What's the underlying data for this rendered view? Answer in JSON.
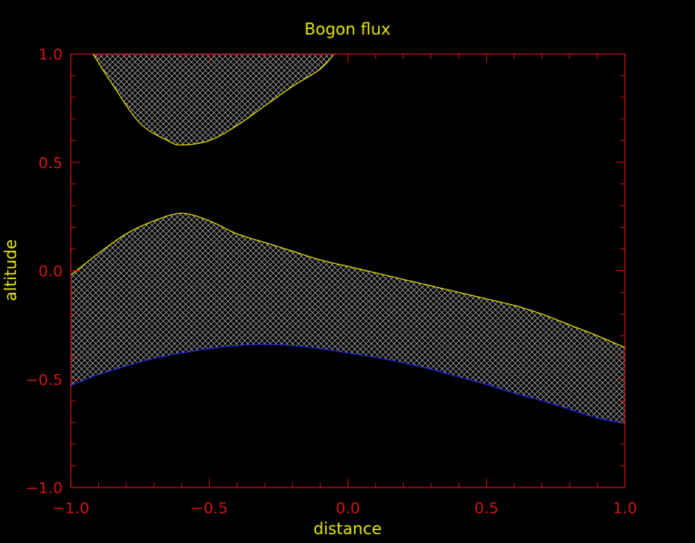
{
  "chart_data": {
    "type": "area",
    "title": "Bogon flux",
    "xlabel": "distance",
    "ylabel": "altitude",
    "xlim": [
      -1.0,
      1.0
    ],
    "ylim": [
      -1.0,
      1.0
    ],
    "x_ticks": [
      "−1.0",
      "−0.5",
      "0.0",
      "0.5",
      "1.0"
    ],
    "y_ticks": [
      "−1.0",
      "−0.5",
      "0.0",
      "0.5",
      "1.0"
    ],
    "grid": false,
    "fill_pattern": "crosshatch",
    "colors": {
      "background": "#000000",
      "axes": "#d01414",
      "text": "#e6e600",
      "upper_curve": "#e6e600",
      "lower_curve": "#2020e0",
      "hatch": "#bdbdbd"
    },
    "regions": [
      {
        "upper": [
          [
            -0.92,
            1.0
          ],
          [
            -0.6,
            1.0
          ],
          [
            -0.3,
            1.0
          ],
          [
            -0.05,
            1.0
          ]
        ],
        "lower": [
          [
            -0.92,
            1.0
          ],
          [
            -0.85,
            0.86
          ],
          [
            -0.75,
            0.68
          ],
          [
            -0.65,
            0.6
          ],
          [
            -0.6,
            0.58
          ],
          [
            -0.5,
            0.6
          ],
          [
            -0.4,
            0.67
          ],
          [
            -0.3,
            0.76
          ],
          [
            -0.2,
            0.85
          ],
          [
            -0.1,
            0.93
          ],
          [
            -0.05,
            1.0
          ]
        ]
      },
      {
        "upper": [
          [
            -1.0,
            -0.02
          ],
          [
            -0.9,
            0.08
          ],
          [
            -0.8,
            0.17
          ],
          [
            -0.7,
            0.23
          ],
          [
            -0.6,
            0.265
          ],
          [
            -0.5,
            0.23
          ],
          [
            -0.4,
            0.17
          ],
          [
            -0.3,
            0.13
          ],
          [
            -0.2,
            0.09
          ],
          [
            -0.1,
            0.05
          ],
          [
            0.0,
            0.02
          ],
          [
            0.1,
            -0.01
          ],
          [
            0.2,
            -0.04
          ],
          [
            0.3,
            -0.07
          ],
          [
            0.4,
            -0.1
          ],
          [
            0.5,
            -0.13
          ],
          [
            0.6,
            -0.16
          ],
          [
            0.7,
            -0.2
          ],
          [
            0.8,
            -0.25
          ],
          [
            0.9,
            -0.3
          ],
          [
            1.0,
            -0.355
          ]
        ],
        "lower": [
          [
            -1.0,
            -0.53
          ],
          [
            -0.9,
            -0.48
          ],
          [
            -0.8,
            -0.44
          ],
          [
            -0.7,
            -0.405
          ],
          [
            -0.6,
            -0.38
          ],
          [
            -0.5,
            -0.36
          ],
          [
            -0.4,
            -0.345
          ],
          [
            -0.3,
            -0.34
          ],
          [
            -0.2,
            -0.345
          ],
          [
            -0.1,
            -0.36
          ],
          [
            0.0,
            -0.38
          ],
          [
            0.1,
            -0.4
          ],
          [
            0.2,
            -0.425
          ],
          [
            0.3,
            -0.455
          ],
          [
            0.4,
            -0.49
          ],
          [
            0.5,
            -0.525
          ],
          [
            0.6,
            -0.565
          ],
          [
            0.7,
            -0.6
          ],
          [
            0.8,
            -0.64
          ],
          [
            0.9,
            -0.68
          ],
          [
            1.0,
            -0.705
          ]
        ]
      }
    ]
  }
}
